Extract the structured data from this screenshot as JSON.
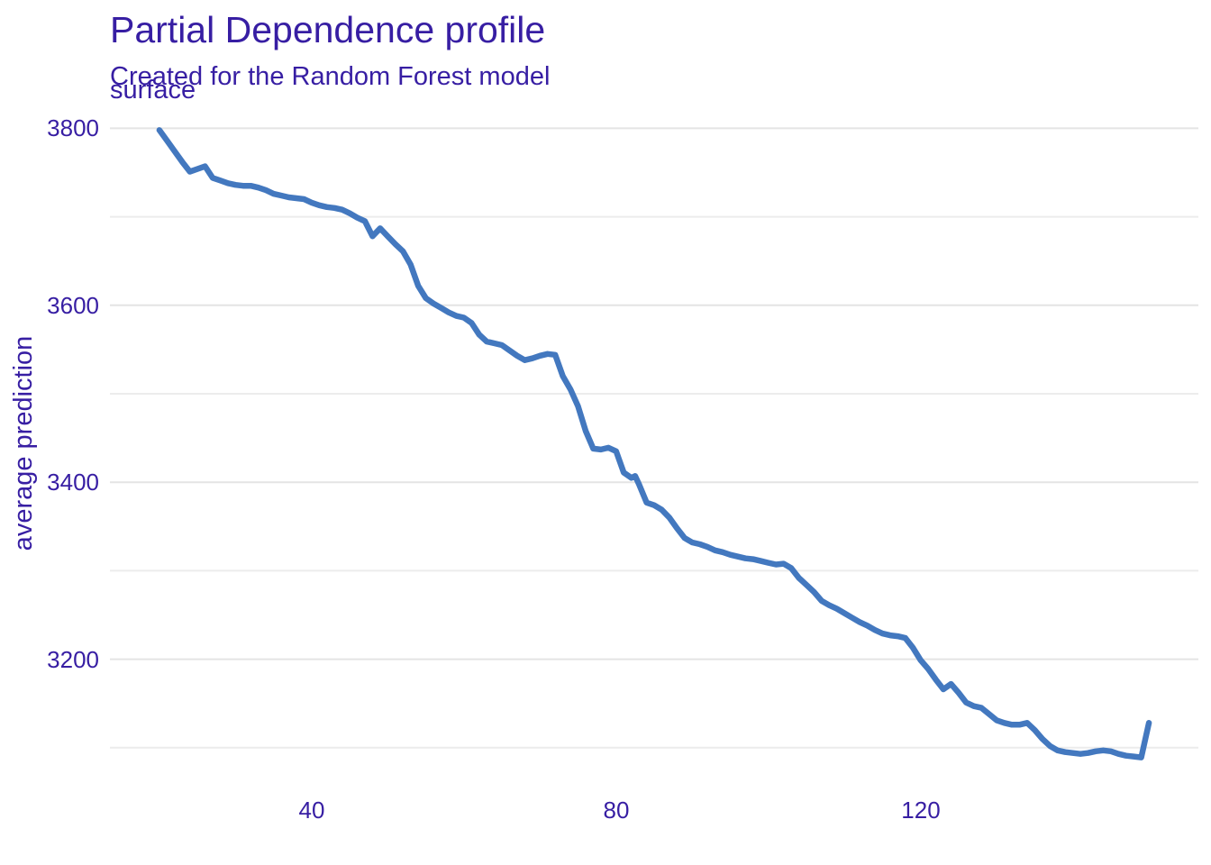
{
  "page": {
    "background": "#ffffff"
  },
  "colors": {
    "text": "#371ea3",
    "line": "#4378bf",
    "grid_major": "#e4e4e4",
    "grid_minor": "#ececec"
  },
  "chart_data": {
    "type": "line",
    "title": "Partial Dependence profile",
    "subtitle": "Created for the Random Forest model",
    "facet_label": "surface",
    "xlabel": "",
    "ylabel": "average prediction",
    "x_ticks": [
      40,
      80,
      120
    ],
    "y_ticks": [
      3800,
      3600,
      3400,
      3200
    ],
    "y_minor_grid": [
      3700,
      3500,
      3300,
      3100
    ],
    "xlim": [
      13.5,
      156.5
    ],
    "ylim": [
      3054,
      3834
    ],
    "grid": {
      "horizontal": true,
      "vertical": false
    },
    "legend_position": "none",
    "series": [
      {
        "name": "Random Forest model",
        "color": "#4378bf",
        "points": [
          [
            20,
            3798
          ],
          [
            21,
            3786
          ],
          [
            22,
            3774
          ],
          [
            23,
            3762
          ],
          [
            24,
            3751
          ],
          [
            25,
            3754
          ],
          [
            26,
            3757
          ],
          [
            27,
            3744
          ],
          [
            28,
            3741
          ],
          [
            29,
            3738
          ],
          [
            30,
            3736
          ],
          [
            31,
            3735
          ],
          [
            32,
            3735
          ],
          [
            33,
            3733
          ],
          [
            34,
            3730
          ],
          [
            35,
            3726
          ],
          [
            36,
            3724
          ],
          [
            37,
            3722
          ],
          [
            38,
            3721
          ],
          [
            39,
            3720
          ],
          [
            40,
            3716
          ],
          [
            41,
            3713
          ],
          [
            42,
            3711
          ],
          [
            43,
            3710
          ],
          [
            44,
            3708
          ],
          [
            45,
            3704
          ],
          [
            46,
            3699
          ],
          [
            47,
            3695
          ],
          [
            48,
            3678
          ],
          [
            49,
            3687
          ],
          [
            50,
            3678
          ],
          [
            51,
            3669
          ],
          [
            52,
            3661
          ],
          [
            53,
            3646
          ],
          [
            54,
            3622
          ],
          [
            55,
            3608
          ],
          [
            56,
            3602
          ],
          [
            57,
            3597
          ],
          [
            58,
            3592
          ],
          [
            59,
            3588
          ],
          [
            60,
            3586
          ],
          [
            61,
            3580
          ],
          [
            62,
            3567
          ],
          [
            63,
            3559
          ],
          [
            64,
            3557
          ],
          [
            65,
            3555
          ],
          [
            66,
            3549
          ],
          [
            67,
            3543
          ],
          [
            68,
            3538
          ],
          [
            69,
            3540
          ],
          [
            70,
            3543
          ],
          [
            71,
            3545
          ],
          [
            72,
            3544
          ],
          [
            73,
            3520
          ],
          [
            74,
            3505
          ],
          [
            75,
            3486
          ],
          [
            76,
            3458
          ],
          [
            77,
            3438
          ],
          [
            78,
            3437
          ],
          [
            79,
            3439
          ],
          [
            80,
            3435
          ],
          [
            81,
            3411
          ],
          [
            82,
            3405
          ],
          [
            82.5,
            3407
          ],
          [
            83,
            3398
          ],
          [
            84,
            3377
          ],
          [
            85,
            3374
          ],
          [
            86,
            3369
          ],
          [
            87,
            3360
          ],
          [
            88,
            3348
          ],
          [
            89,
            3337
          ],
          [
            90,
            3332
          ],
          [
            91,
            3330
          ],
          [
            92,
            3327
          ],
          [
            93,
            3323
          ],
          [
            94,
            3321
          ],
          [
            95,
            3318
          ],
          [
            96,
            3316
          ],
          [
            97,
            3314
          ],
          [
            98,
            3313
          ],
          [
            99,
            3311
          ],
          [
            100,
            3309
          ],
          [
            101,
            3307
          ],
          [
            102,
            3308
          ],
          [
            103,
            3303
          ],
          [
            104,
            3292
          ],
          [
            105,
            3284
          ],
          [
            106,
            3276
          ],
          [
            107,
            3266
          ],
          [
            108,
            3261
          ],
          [
            109,
            3257
          ],
          [
            110,
            3252
          ],
          [
            111,
            3247
          ],
          [
            112,
            3242
          ],
          [
            113,
            3238
          ],
          [
            114,
            3233
          ],
          [
            115,
            3229
          ],
          [
            116,
            3227
          ],
          [
            117,
            3226
          ],
          [
            118,
            3224
          ],
          [
            119,
            3213
          ],
          [
            120,
            3199
          ],
          [
            121,
            3189
          ],
          [
            122,
            3177
          ],
          [
            123,
            3166
          ],
          [
            124,
            3172
          ],
          [
            125,
            3162
          ],
          [
            126,
            3151
          ],
          [
            127,
            3147
          ],
          [
            128,
            3145
          ],
          [
            129,
            3138
          ],
          [
            130,
            3131
          ],
          [
            131,
            3128
          ],
          [
            132,
            3126
          ],
          [
            133,
            3126
          ],
          [
            134,
            3128
          ],
          [
            135,
            3120
          ],
          [
            136,
            3110
          ],
          [
            137,
            3102
          ],
          [
            138,
            3097
          ],
          [
            139,
            3095
          ],
          [
            140,
            3094
          ],
          [
            141,
            3093
          ],
          [
            142,
            3094
          ],
          [
            143,
            3096
          ],
          [
            144,
            3097
          ],
          [
            145,
            3096
          ],
          [
            146,
            3093
          ],
          [
            147,
            3091
          ],
          [
            148,
            3090
          ],
          [
            149,
            3089
          ],
          [
            150,
            3128
          ]
        ]
      }
    ]
  }
}
